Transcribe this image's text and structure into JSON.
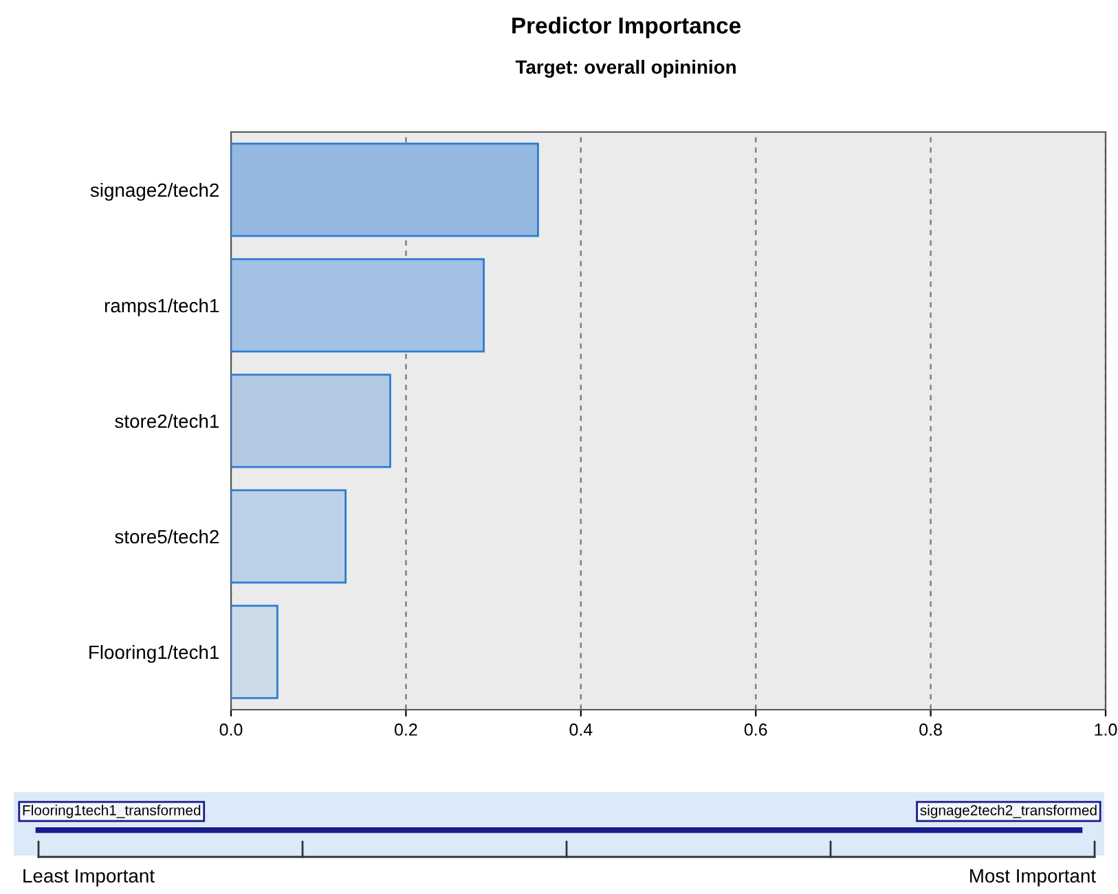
{
  "chart_data": {
    "type": "bar",
    "orientation": "horizontal",
    "title": "Predictor Importance",
    "subtitle": "Target: overall opininion",
    "categories": [
      "signage2/tech2",
      "ramps1/tech1",
      "store2/tech1",
      "store5/tech2",
      "Flooring1/tech1"
    ],
    "values": [
      0.351,
      0.289,
      0.182,
      0.131,
      0.053
    ],
    "colors": [
      "#94b8e0",
      "#a2c1e4",
      "#b3c9e1",
      "#bdd1e6",
      "#ccdbe8"
    ],
    "xlim": [
      0,
      1
    ],
    "xticks": [
      {
        "value": 0,
        "label": "0.0"
      },
      0.2,
      0.4,
      0.6,
      0.8,
      {
        "value": 1,
        "label": "1.0"
      }
    ],
    "grid": "x",
    "annotations": [
      "Flooring1tech1_transformed",
      "signage2tech2_transformed",
      "Least Important",
      "Most Important"
    ]
  }
}
